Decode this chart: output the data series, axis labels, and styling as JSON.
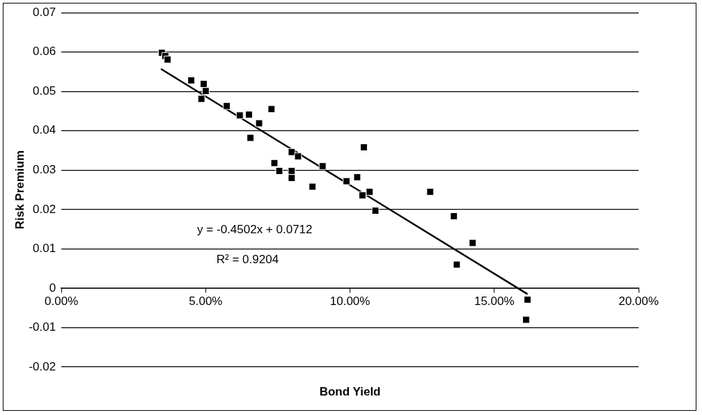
{
  "chart_data": {
    "type": "scatter",
    "xlabel": "Bond Yield",
    "ylabel": "Risk Premium",
    "xlim": [
      0,
      0.2
    ],
    "xticks": [
      {
        "value": 0,
        "label": "0.00%"
      },
      {
        "value": 0.05,
        "label": "5.00%"
      },
      {
        "value": 0.1,
        "label": "10.00%"
      },
      {
        "value": 0.15,
        "label": "15.00%"
      },
      {
        "value": 0.2,
        "label": "20.00%"
      }
    ],
    "ylim": [
      -0.02,
      0.07
    ],
    "yticks": [
      -0.02,
      -0.01,
      0,
      0.01,
      0.02,
      0.03,
      0.04,
      0.05,
      0.06,
      0.07
    ],
    "grid": "y",
    "legend": false,
    "marker": "square",
    "series": [
      {
        "color": "#000000",
        "x": [
          0.0348,
          0.036,
          0.0368,
          0.045,
          0.0493,
          0.05,
          0.0485,
          0.0573,
          0.0618,
          0.065,
          0.0685,
          0.0728,
          0.0655,
          0.0798,
          0.0738,
          0.0755,
          0.082,
          0.0798,
          0.0905,
          0.0798,
          0.087,
          0.1048,
          0.0988,
          0.1025,
          0.1043,
          0.1068,
          0.1088,
          0.1278,
          0.136,
          0.1425,
          0.137,
          0.1615,
          0.161
        ],
        "values": [
          0.0598,
          0.059,
          0.0581,
          0.0528,
          0.0519,
          0.0501,
          0.0481,
          0.0463,
          0.0439,
          0.0441,
          0.0419,
          0.0455,
          0.0382,
          0.0346,
          0.0318,
          0.0298,
          0.0335,
          0.028,
          0.031,
          0.0298,
          0.0258,
          0.0358,
          0.0272,
          0.0282,
          0.0236,
          0.0245,
          0.0197,
          0.0245,
          0.0183,
          0.0115,
          0.006,
          -0.0029,
          -0.008
        ]
      },
      {
        "type": "line",
        "color": "#000000",
        "marker": "none",
        "x": [
          0.0345,
          0.1615
        ],
        "values": [
          0.0557,
          -0.0015
        ]
      }
    ],
    "annotations": [
      "y = -0.4502x + 0.0712",
      "R² = 0.9204"
    ]
  }
}
